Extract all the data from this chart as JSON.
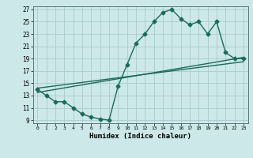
{
  "title": "",
  "xlabel": "Humidex (Indice chaleur)",
  "background_color": "#cce8e8",
  "grid_color": "#aacccc",
  "line_color": "#1a6b5a",
  "xlim": [
    -0.5,
    23.5
  ],
  "ylim": [
    8.5,
    27.5
  ],
  "xticks": [
    0,
    1,
    2,
    3,
    4,
    5,
    6,
    7,
    8,
    9,
    10,
    11,
    12,
    13,
    14,
    15,
    16,
    17,
    18,
    19,
    20,
    21,
    22,
    23
  ],
  "yticks": [
    9,
    11,
    13,
    15,
    17,
    19,
    21,
    23,
    25,
    27
  ],
  "main_x": [
    0,
    1,
    2,
    3,
    4,
    5,
    6,
    7,
    8,
    9,
    10,
    11,
    12,
    13,
    14,
    15,
    16,
    17,
    18,
    19,
    20,
    21,
    22,
    23
  ],
  "main_y": [
    14,
    13,
    12,
    12,
    11,
    10,
    9.5,
    9.2,
    9,
    14.5,
    18,
    21.5,
    23,
    25,
    26.5,
    27,
    25.5,
    24.5,
    25,
    23,
    25,
    20,
    19,
    19
  ],
  "line1_x": [
    0,
    23
  ],
  "line1_y": [
    13.5,
    19.2
  ],
  "line2_x": [
    0,
    23
  ],
  "line2_y": [
    14.2,
    18.5
  ],
  "marker_size": 2.5,
  "line_width": 1.0
}
